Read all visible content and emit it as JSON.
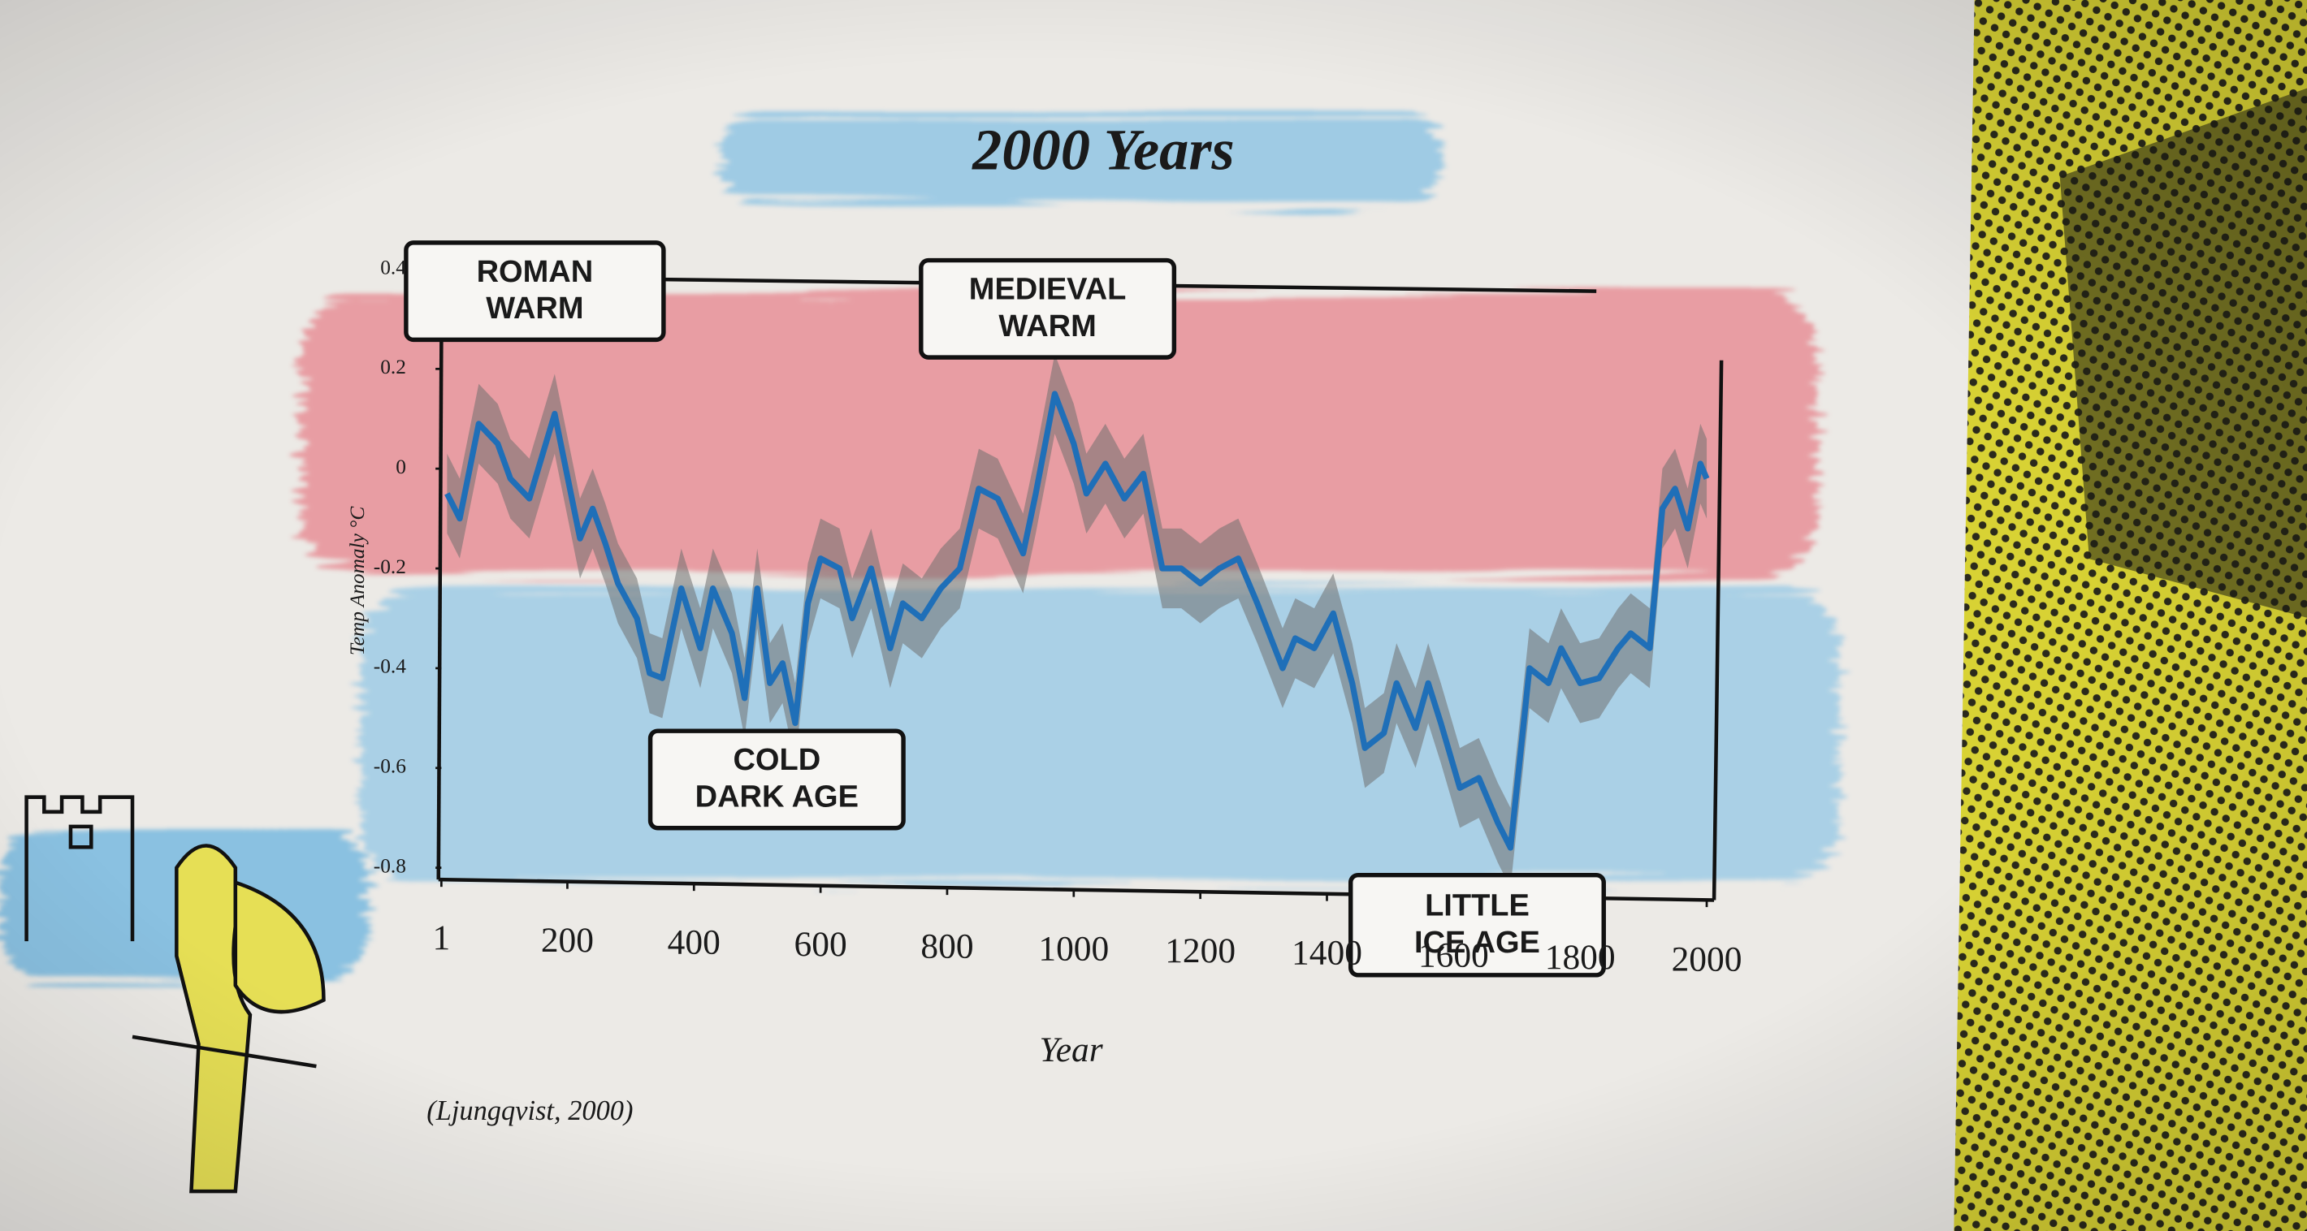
{
  "chart_data": {
    "type": "line",
    "title": "2000 Years",
    "x_label": "Year",
    "y_label": "Temp Anomaly °C",
    "source": "(Ljungqvist, 2000)",
    "annotations": [
      {
        "text": "ROMAN\nWARM"
      },
      {
        "text": "MEDIEVAL\nWARM"
      },
      {
        "text": "COLD\nDARK AGE"
      },
      {
        "text": "LITTLE\nICE AGE"
      }
    ],
    "x": [
      10,
      30,
      60,
      90,
      110,
      140,
      180,
      220,
      240,
      260,
      280,
      310,
      330,
      350,
      380,
      410,
      430,
      460,
      480,
      500,
      520,
      540,
      560,
      580,
      600,
      630,
      650,
      680,
      710,
      730,
      760,
      790,
      820,
      850,
      880,
      920,
      940,
      970,
      1000,
      1020,
      1050,
      1080,
      1110,
      1140,
      1170,
      1200,
      1230,
      1260,
      1290,
      1330,
      1350,
      1380,
      1410,
      1440,
      1460,
      1490,
      1510,
      1540,
      1560,
      1580,
      1610,
      1640,
      1670,
      1690,
      1720,
      1750,
      1770,
      1800,
      1830,
      1860,
      1880,
      1910,
      1930,
      1950,
      1970,
      1990,
      2000
    ],
    "values": [
      -0.05,
      -0.1,
      0.09,
      0.05,
      -0.02,
      -0.06,
      0.11,
      -0.14,
      -0.08,
      -0.15,
      -0.23,
      -0.3,
      -0.41,
      -0.42,
      -0.24,
      -0.36,
      -0.24,
      -0.33,
      -0.46,
      -0.24,
      -0.43,
      -0.39,
      -0.51,
      -0.27,
      -0.18,
      -0.2,
      -0.3,
      -0.2,
      -0.36,
      -0.27,
      -0.3,
      -0.24,
      -0.2,
      -0.04,
      -0.06,
      -0.17,
      -0.05,
      0.15,
      0.05,
      -0.05,
      0.01,
      -0.06,
      -0.01,
      -0.2,
      -0.2,
      -0.23,
      -0.2,
      -0.18,
      -0.27,
      -0.4,
      -0.34,
      -0.36,
      -0.29,
      -0.43,
      -0.56,
      -0.53,
      -0.43,
      -0.52,
      -0.43,
      -0.51,
      -0.64,
      -0.62,
      -0.71,
      -0.76,
      -0.4,
      -0.43,
      -0.36,
      -0.43,
      -0.42,
      -0.36,
      -0.33,
      -0.36,
      -0.08,
      -0.04,
      -0.12,
      0.01,
      -0.02
    ],
    "error": 0.08,
    "color": "#1f6fb8",
    "band_color": "#6f6f6f",
    "xlim": [
      1,
      2000
    ],
    "xticks": [
      1,
      200,
      400,
      600,
      800,
      1000,
      1200,
      1400,
      1600,
      1800,
      2000
    ],
    "ylim": [
      -0.8,
      0.4
    ],
    "yticks": [
      0.4,
      0.2,
      0,
      -0.2,
      -0.4,
      -0.6,
      -0.8
    ]
  }
}
